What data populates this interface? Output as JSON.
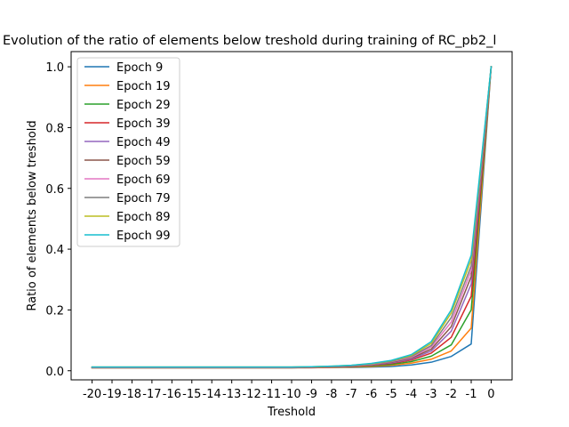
{
  "chart_data": {
    "type": "line",
    "title": "Evolution of the ratio of elements below treshold during training of RC_pb2_l",
    "xlabel": "Treshold",
    "ylabel": "Ratio of elements below treshold",
    "x": [
      -20,
      -19,
      -18,
      -17,
      -16,
      -15,
      -14,
      -13,
      -12,
      -11,
      -10,
      -9,
      -8,
      -7,
      -6,
      -5,
      -4,
      -3,
      -2,
      -1,
      0
    ],
    "x_tick_labels": [
      "-20",
      "-19",
      "-18",
      "-17",
      "-16",
      "-15",
      "-14",
      "-13",
      "-12",
      "-11",
      "-10",
      "-9",
      "-8",
      "-7",
      "-6",
      "-5",
      "-4",
      "-3",
      "-2",
      "-1",
      "0"
    ],
    "ylim": [
      -0.03,
      1.05
    ],
    "y_ticks": [
      0.0,
      0.2,
      0.4,
      0.6,
      0.8,
      1.0
    ],
    "y_tick_labels": [
      "0.0",
      "0.2",
      "0.4",
      "0.6",
      "0.8",
      "1.0"
    ],
    "grid": false,
    "legend_position": "top-left",
    "series": [
      {
        "name": "Epoch 9",
        "color": "#1f77b4",
        "values": [
          0.01,
          0.01,
          0.01,
          0.01,
          0.01,
          0.01,
          0.01,
          0.01,
          0.01,
          0.01,
          0.01,
          0.01,
          0.011,
          0.011,
          0.012,
          0.014,
          0.019,
          0.028,
          0.047,
          0.088,
          1.0
        ]
      },
      {
        "name": "Epoch 19",
        "color": "#ff7f0e",
        "values": [
          0.01,
          0.01,
          0.01,
          0.01,
          0.01,
          0.01,
          0.01,
          0.01,
          0.01,
          0.01,
          0.01,
          0.01,
          0.011,
          0.012,
          0.014,
          0.018,
          0.025,
          0.038,
          0.065,
          0.14,
          1.0
        ]
      },
      {
        "name": "Epoch 29",
        "color": "#2ca02c",
        "values": [
          0.01,
          0.01,
          0.01,
          0.01,
          0.01,
          0.01,
          0.01,
          0.01,
          0.01,
          0.01,
          0.01,
          0.011,
          0.012,
          0.013,
          0.016,
          0.021,
          0.03,
          0.048,
          0.085,
          0.2,
          1.0
        ]
      },
      {
        "name": "Epoch 39",
        "color": "#d62728",
        "values": [
          0.01,
          0.01,
          0.01,
          0.01,
          0.01,
          0.01,
          0.01,
          0.01,
          0.01,
          0.01,
          0.01,
          0.011,
          0.012,
          0.014,
          0.018,
          0.024,
          0.035,
          0.058,
          0.11,
          0.245,
          1.0
        ]
      },
      {
        "name": "Epoch 49",
        "color": "#9467bd",
        "values": [
          0.011,
          0.011,
          0.011,
          0.011,
          0.011,
          0.011,
          0.011,
          0.011,
          0.011,
          0.011,
          0.011,
          0.012,
          0.013,
          0.015,
          0.019,
          0.026,
          0.038,
          0.065,
          0.13,
          0.285,
          1.0
        ]
      },
      {
        "name": "Epoch 59",
        "color": "#8c564b",
        "values": [
          0.011,
          0.011,
          0.011,
          0.011,
          0.011,
          0.011,
          0.011,
          0.011,
          0.011,
          0.011,
          0.011,
          0.012,
          0.013,
          0.015,
          0.02,
          0.028,
          0.041,
          0.071,
          0.145,
          0.31,
          1.0
        ]
      },
      {
        "name": "Epoch 69",
        "color": "#e377c2",
        "values": [
          0.011,
          0.011,
          0.011,
          0.011,
          0.011,
          0.011,
          0.011,
          0.011,
          0.011,
          0.011,
          0.011,
          0.012,
          0.014,
          0.016,
          0.021,
          0.03,
          0.044,
          0.078,
          0.16,
          0.33,
          1.0
        ]
      },
      {
        "name": "Epoch 79",
        "color": "#7f7f7f",
        "values": [
          0.012,
          0.012,
          0.012,
          0.012,
          0.012,
          0.012,
          0.012,
          0.012,
          0.012,
          0.012,
          0.012,
          0.013,
          0.014,
          0.017,
          0.022,
          0.031,
          0.047,
          0.083,
          0.175,
          0.345,
          1.0
        ]
      },
      {
        "name": "Epoch 89",
        "color": "#bcbd22",
        "values": [
          0.012,
          0.012,
          0.012,
          0.012,
          0.012,
          0.012,
          0.012,
          0.012,
          0.012,
          0.012,
          0.012,
          0.013,
          0.015,
          0.018,
          0.023,
          0.033,
          0.05,
          0.09,
          0.19,
          0.365,
          1.0
        ]
      },
      {
        "name": "Epoch 99",
        "color": "#17becf",
        "values": [
          0.012,
          0.012,
          0.012,
          0.012,
          0.012,
          0.012,
          0.012,
          0.012,
          0.012,
          0.012,
          0.012,
          0.013,
          0.015,
          0.018,
          0.024,
          0.034,
          0.053,
          0.096,
          0.2,
          0.38,
          1.0
        ]
      }
    ]
  }
}
